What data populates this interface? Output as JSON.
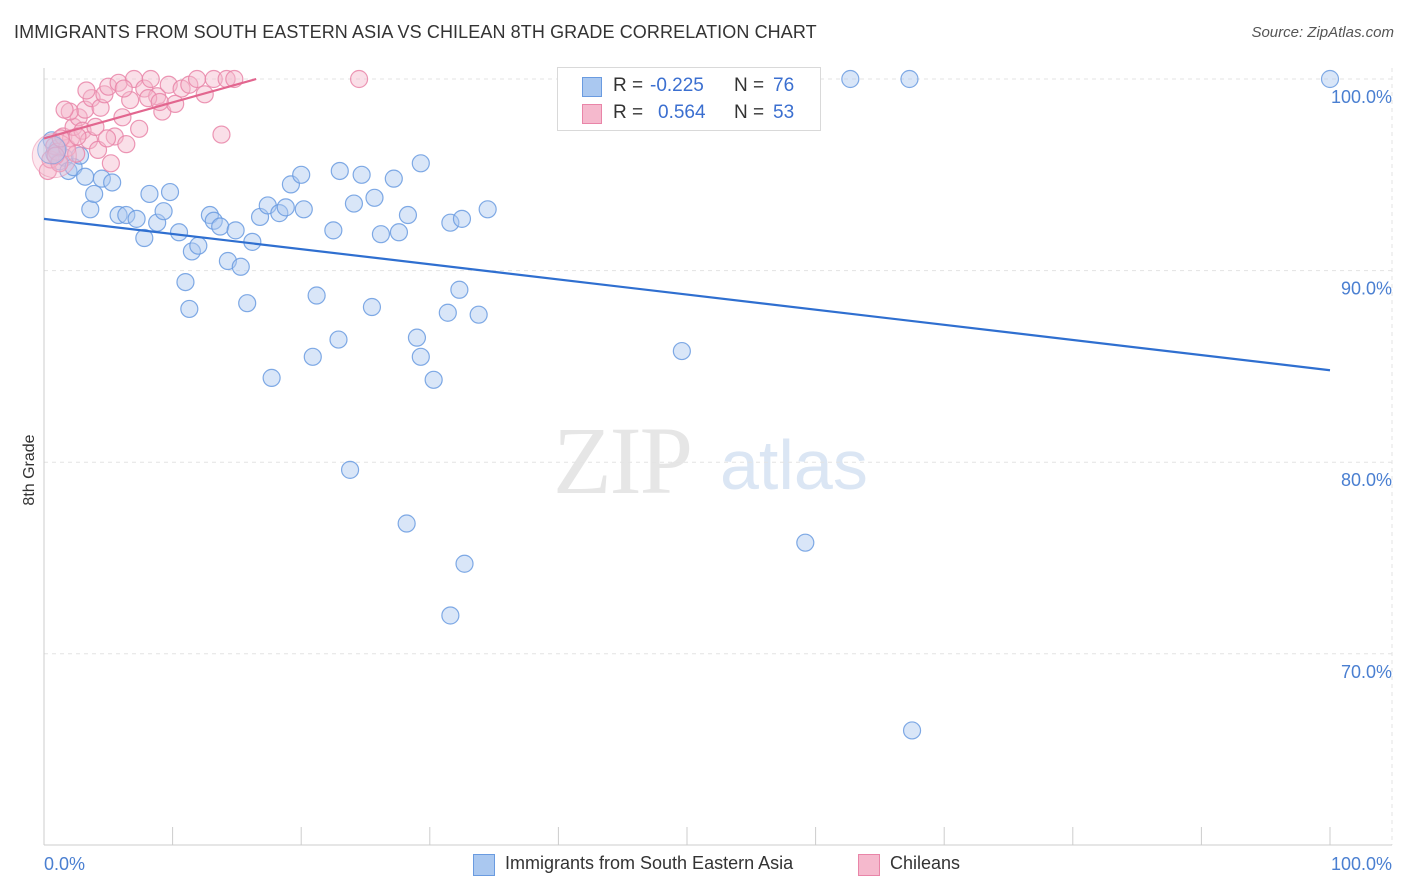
{
  "title": "IMMIGRANTS FROM SOUTH EASTERN ASIA VS CHILEAN 8TH GRADE CORRELATION CHART",
  "source": "Source: ZipAtlas.com",
  "watermark": {
    "zip": "ZIP",
    "atlas": "atlas"
  },
  "legend": {
    "rows": [
      {
        "r_label": "R = ",
        "r_value": "-0.225",
        "n_label": "N = ",
        "n_value": "76"
      },
      {
        "r_label": "R = ",
        "r_value": "0.564",
        "n_label": "N = ",
        "n_value": "53"
      }
    ]
  },
  "bottom_legend": [
    "Immigrants from South Eastern Asia",
    "Chileans"
  ],
  "chart_data": {
    "type": "scatter",
    "title": "IMMIGRANTS FROM SOUTH EASTERN ASIA VS CHILEAN 8TH GRADE CORRELATION CHART",
    "xlabel": "",
    "ylabel": "8th Grade",
    "xlim": [
      0,
      100
    ],
    "ylim": [
      60,
      100
    ],
    "x_tick_labels": [
      "0.0%",
      "100.0%"
    ],
    "y_ticks": [
      100,
      90,
      80,
      70
    ],
    "y_tick_labels": [
      "100.0%",
      "90.0%",
      "80.0%",
      "70.0%"
    ],
    "grid": true,
    "legend_position": "top-center",
    "series": [
      {
        "name": "Immigrants from South Eastern Asia",
        "color": "#6a9be0",
        "fill": "#aac8f0",
        "trend": {
          "x": [
            0,
            100
          ],
          "y": [
            92.7,
            84.8
          ]
        },
        "points": [
          [
            0.6,
            96.8
          ],
          [
            0.8,
            96.1
          ],
          [
            1.2,
            95.7
          ],
          [
            1.6,
            95.9
          ],
          [
            1.9,
            95.2
          ],
          [
            2.3,
            95.4
          ],
          [
            2.8,
            96.0
          ],
          [
            3.2,
            94.9
          ],
          [
            3.6,
            93.2
          ],
          [
            3.9,
            94.0
          ],
          [
            4.5,
            94.8
          ],
          [
            5.3,
            94.6
          ],
          [
            5.8,
            92.9
          ],
          [
            6.4,
            92.9
          ],
          [
            7.2,
            92.7
          ],
          [
            7.8,
            91.7
          ],
          [
            8.2,
            94.0
          ],
          [
            8.8,
            92.5
          ],
          [
            9.3,
            93.1
          ],
          [
            9.8,
            94.1
          ],
          [
            10.5,
            92.0
          ],
          [
            11.5,
            91.0
          ],
          [
            12.0,
            91.3
          ],
          [
            12.9,
            92.9
          ],
          [
            13.2,
            92.6
          ],
          [
            13.7,
            92.3
          ],
          [
            14.3,
            90.5
          ],
          [
            14.9,
            92.1
          ],
          [
            15.3,
            90.2
          ],
          [
            16.2,
            91.5
          ],
          [
            16.8,
            92.8
          ],
          [
            17.4,
            93.4
          ],
          [
            18.3,
            93.0
          ],
          [
            18.8,
            93.3
          ],
          [
            19.2,
            94.5
          ],
          [
            20.0,
            95.0
          ],
          [
            20.2,
            93.2
          ],
          [
            21.2,
            88.7
          ],
          [
            22.5,
            92.1
          ],
          [
            23.0,
            95.2
          ],
          [
            24.1,
            93.5
          ],
          [
            24.7,
            95.0
          ],
          [
            25.7,
            93.8
          ],
          [
            26.2,
            91.9
          ],
          [
            27.2,
            94.8
          ],
          [
            27.6,
            92.0
          ],
          [
            28.3,
            92.9
          ],
          [
            29.3,
            95.6
          ],
          [
            31.6,
            92.5
          ],
          [
            32.5,
            92.7
          ],
          [
            34.5,
            93.2
          ],
          [
            11.0,
            89.4
          ],
          [
            11.3,
            88.0
          ],
          [
            15.8,
            88.3
          ],
          [
            25.5,
            88.1
          ],
          [
            31.4,
            87.8
          ],
          [
            32.3,
            89.0
          ],
          [
            33.8,
            87.7
          ],
          [
            22.9,
            86.4
          ],
          [
            29.0,
            86.5
          ],
          [
            20.9,
            85.5
          ],
          [
            29.3,
            85.5
          ],
          [
            17.7,
            84.4
          ],
          [
            30.3,
            84.3
          ],
          [
            49.6,
            85.8
          ],
          [
            23.8,
            79.6
          ],
          [
            28.2,
            76.8
          ],
          [
            32.7,
            74.7
          ],
          [
            31.6,
            72.0
          ],
          [
            59.2,
            75.8
          ],
          [
            67.5,
            66.0
          ],
          [
            43.2,
            100.0
          ],
          [
            62.7,
            100.0
          ],
          [
            67.3,
            100.0
          ],
          [
            100.0,
            100.0
          ],
          [
            1.1,
            96.4
          ]
        ]
      },
      {
        "name": "Chileans",
        "color": "#e985a8",
        "fill": "#f5b9cd",
        "trend": {
          "x": [
            0,
            16.5
          ],
          "y": [
            96.9,
            100.0
          ]
        },
        "points": [
          [
            0.3,
            95.2
          ],
          [
            0.5,
            95.8
          ],
          [
            0.8,
            96.5
          ],
          [
            1.0,
            96.2
          ],
          [
            1.2,
            95.6
          ],
          [
            1.5,
            97.0
          ],
          [
            1.8,
            96.4
          ],
          [
            2.1,
            96.9
          ],
          [
            2.3,
            97.5
          ],
          [
            2.5,
            96.1
          ],
          [
            2.7,
            98.0
          ],
          [
            3.0,
            97.3
          ],
          [
            3.2,
            98.4
          ],
          [
            3.5,
            96.8
          ],
          [
            3.7,
            99.0
          ],
          [
            4.0,
            97.5
          ],
          [
            4.2,
            96.3
          ],
          [
            4.4,
            98.5
          ],
          [
            4.7,
            99.2
          ],
          [
            5.0,
            99.6
          ],
          [
            5.2,
            95.6
          ],
          [
            5.5,
            97.0
          ],
          [
            5.8,
            99.8
          ],
          [
            6.1,
            98.0
          ],
          [
            6.4,
            96.6
          ],
          [
            6.7,
            98.9
          ],
          [
            7.0,
            100.0
          ],
          [
            7.4,
            97.4
          ],
          [
            7.8,
            99.5
          ],
          [
            8.3,
            100.0
          ],
          [
            8.8,
            99.1
          ],
          [
            9.2,
            98.3
          ],
          [
            9.7,
            99.7
          ],
          [
            10.2,
            98.7
          ],
          [
            10.7,
            99.5
          ],
          [
            11.3,
            99.7
          ],
          [
            11.9,
            100.0
          ],
          [
            12.5,
            99.2
          ],
          [
            13.2,
            100.0
          ],
          [
            13.8,
            97.1
          ],
          [
            14.2,
            100.0
          ],
          [
            14.8,
            100.0
          ],
          [
            2.0,
            98.3
          ],
          [
            3.3,
            99.4
          ],
          [
            4.9,
            96.9
          ],
          [
            2.6,
            97.0
          ],
          [
            1.6,
            98.4
          ],
          [
            6.2,
            99.5
          ],
          [
            8.1,
            99.0
          ],
          [
            24.5,
            100.0
          ],
          [
            9.0,
            98.8
          ],
          [
            1.3,
            96.9
          ],
          [
            0.9,
            96.0
          ]
        ]
      }
    ]
  }
}
